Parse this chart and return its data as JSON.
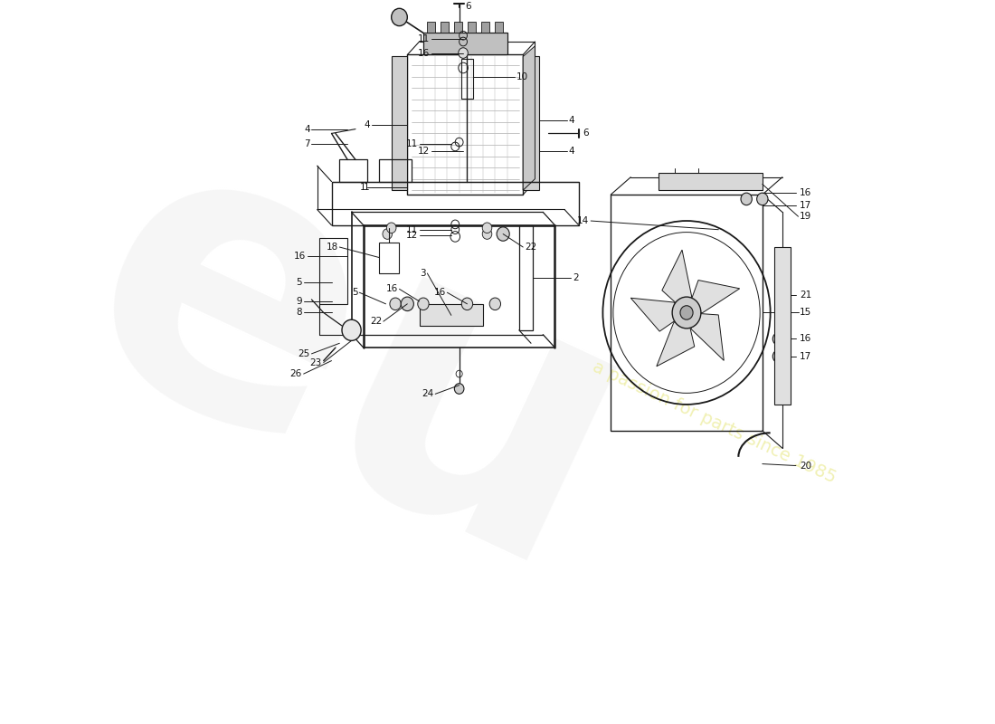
{
  "background_color": "#ffffff",
  "line_color": "#1a1a1a",
  "label_color": "#111111",
  "watermark_logo_color": "#e8e8e8",
  "watermark_text_color": "#f0f0b0",
  "fig_width": 11.0,
  "fig_height": 8.0,
  "dpi": 100
}
